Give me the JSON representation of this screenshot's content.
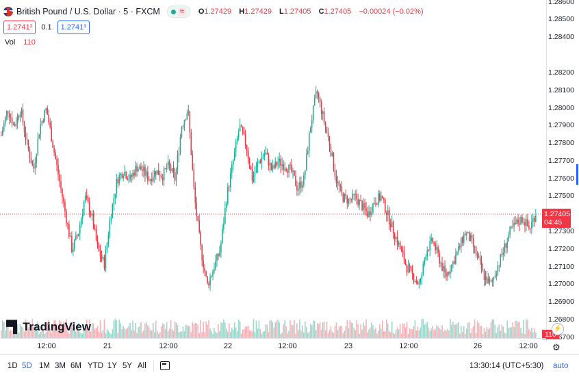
{
  "header": {
    "symbol": "British Pound / U.S. Dollar · 5 · FXCM",
    "ohlc": {
      "o_label": "O",
      "o": "1.27429",
      "h_label": "H",
      "h": "1.27429",
      "l_label": "L",
      "l": "1.27405",
      "c_label": "C",
      "c": "1.27405",
      "change": "−0.00024 (−0.02%)"
    },
    "sell_price": "1.2741²",
    "spread": "0.1",
    "buy_price": "1.2741³",
    "volume_label": "Vol",
    "volume_value": "110"
  },
  "price_axis": {
    "ticks": [
      "1.28600",
      "1.28500",
      "1.28400",
      "1.28200",
      "1.28100",
      "1.28000",
      "1.27900",
      "1.27800",
      "1.27700",
      "1.27600",
      "1.27500",
      "1.27300",
      "1.27200",
      "1.27100",
      "1.27000",
      "1.26900",
      "1.26800",
      "1.26700"
    ],
    "current_price": "1.27405",
    "countdown": "04:45",
    "volume_badge": "110"
  },
  "time_axis": {
    "labels": [
      "12:00",
      "21",
      "12:00",
      "22",
      "12:00",
      "23",
      "12:00",
      "26",
      "12:00"
    ]
  },
  "brand": "TradingView",
  "bottom_bar": {
    "ranges": [
      "1D",
      "5D",
      "1M",
      "3M",
      "6M",
      "YTD",
      "1Y",
      "5Y",
      "All"
    ],
    "active_range": "5D",
    "time": "13:30:14 (UTC+5:30)",
    "auto": "auto"
  },
  "colors": {
    "up": "#22ab94",
    "down": "#f23645",
    "price_line": "#f23645",
    "accent": "#2962ff"
  },
  "chart_data": {
    "type": "candlestick",
    "series": [
      {
        "name": "GBP/USD 5m",
        "close_path": [
          1.2785,
          1.28,
          1.279,
          1.28,
          1.278,
          1.2765,
          1.279,
          1.28,
          1.278,
          1.276,
          1.274,
          1.272,
          1.273,
          1.275,
          1.274,
          1.272,
          1.2712,
          1.274,
          1.276,
          1.2765,
          1.276,
          1.2767,
          1.2765,
          1.276,
          1.2765,
          1.2762,
          1.2768,
          1.276,
          1.279,
          1.28,
          1.275,
          1.272,
          1.27,
          1.271,
          1.272,
          1.275,
          1.277,
          1.279,
          1.278,
          1.276,
          1.277,
          1.2775,
          1.2765,
          1.277,
          1.2768,
          1.2765,
          1.2755,
          1.276,
          1.279,
          1.281,
          1.2795,
          1.278,
          1.276,
          1.275,
          1.2748,
          1.275,
          1.2745,
          1.274,
          1.2748,
          1.275,
          1.274,
          1.273,
          1.272,
          1.271,
          1.2705,
          1.27,
          1.272,
          1.2725,
          1.2715,
          1.2705,
          1.2712,
          1.272,
          1.273,
          1.2725,
          1.2715,
          1.2705,
          1.27,
          1.271,
          1.272,
          1.273,
          1.2735,
          1.2738,
          1.2732,
          1.2741
        ]
      }
    ],
    "volume_last": 110
  }
}
